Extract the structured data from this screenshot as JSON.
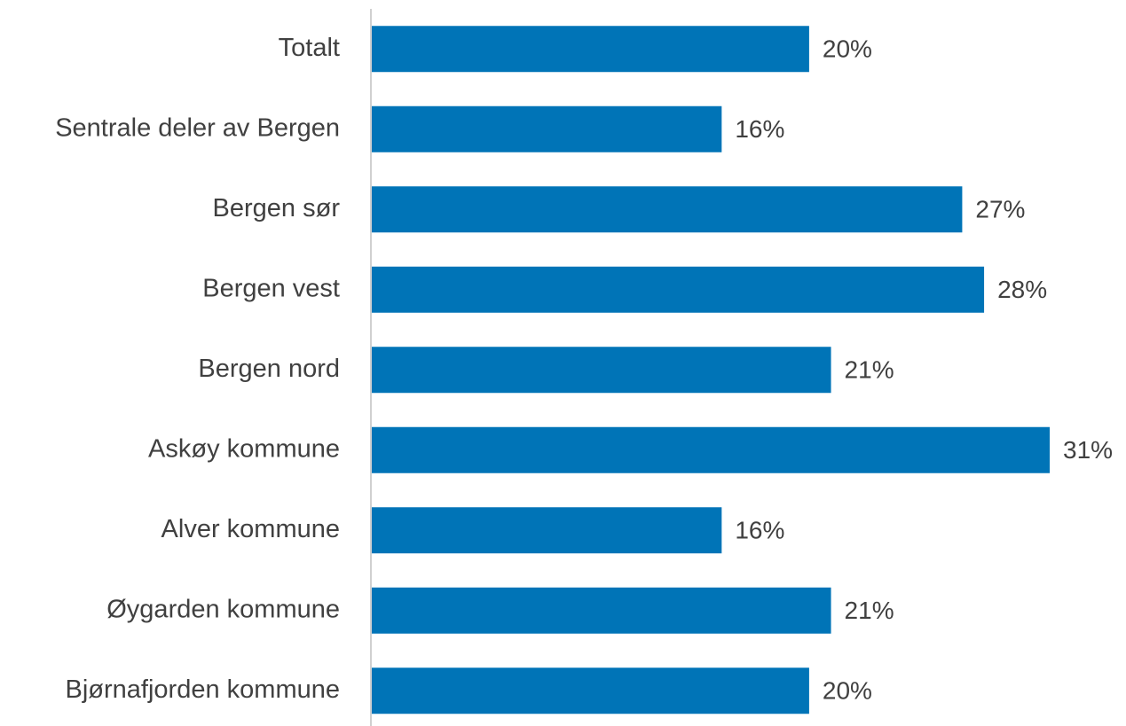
{
  "chart_data": {
    "type": "bar",
    "orientation": "horizontal",
    "categories": [
      "Totalt",
      "Sentrale deler av Bergen",
      "Bergen sør",
      "Bergen vest",
      "Bergen nord",
      "Askøy kommune",
      "Alver kommune",
      "Øygarden kommune",
      "Bjørnafjorden kommune"
    ],
    "values": [
      20,
      16,
      27,
      28,
      21,
      31,
      16,
      21,
      20
    ],
    "value_labels": [
      "20%",
      "16%",
      "27%",
      "28%",
      "21%",
      "31%",
      "16%",
      "21%",
      "20%"
    ],
    "color": "#0074b7"
  }
}
